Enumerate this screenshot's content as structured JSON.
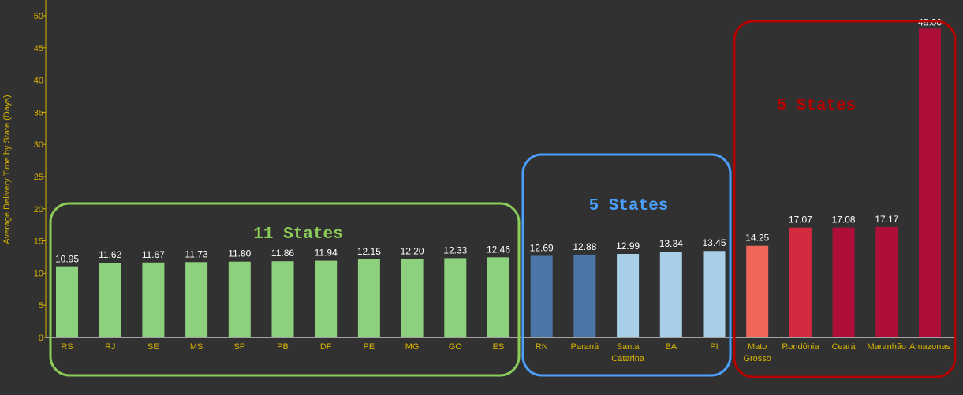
{
  "chart_data": {
    "type": "bar",
    "ylabel": "Average Delivery Time by State (Days)",
    "ylim": [
      0,
      50
    ],
    "yticks": [
      0,
      5,
      10,
      15,
      20,
      25,
      30,
      35,
      40,
      45,
      50
    ],
    "categories": [
      "RS",
      "RJ",
      "SE",
      "MS",
      "SP",
      "PB",
      "DF",
      "PE",
      "MG",
      "GO",
      "ES",
      "RN",
      "Paraná",
      "Santa Catarina",
      "BA",
      "PI",
      "Mato Grosso",
      "Rondônia",
      "Ceará",
      "Maranhão",
      "Amazonas"
    ],
    "values": [
      10.95,
      11.62,
      11.67,
      11.73,
      11.8,
      11.86,
      11.94,
      12.15,
      12.2,
      12.33,
      12.46,
      12.69,
      12.88,
      12.99,
      13.34,
      13.45,
      14.25,
      17.07,
      17.08,
      17.17,
      48.0
    ],
    "value_labels": [
      "10.95",
      "11.62",
      "11.67",
      "11.73",
      "11.80",
      "11.86",
      "11.94",
      "12.15",
      "12.20",
      "12.33",
      "12.46",
      "12.69",
      "12.88",
      "12.99",
      "13.34",
      "13.45",
      "14.25",
      "17.07",
      "17.08",
      "17.17",
      "48.00"
    ],
    "bar_colors": [
      "#8dd17e",
      "#8dd17e",
      "#8dd17e",
      "#8dd17e",
      "#8dd17e",
      "#8dd17e",
      "#8dd17e",
      "#8dd17e",
      "#8dd17e",
      "#8dd17e",
      "#8dd17e",
      "#4a76a8",
      "#4a76a8",
      "#a9cfe8",
      "#a9cfe8",
      "#a9cfe8",
      "#f0675a",
      "#d42a3f",
      "#ad0f38",
      "#ad0f38",
      "#ad0f38"
    ],
    "groups": [
      {
        "label": "11 States",
        "color": "#8ccc58",
        "from": 0,
        "to": 10
      },
      {
        "label": "5 States",
        "color": "#4a9fff",
        "from": 11,
        "to": 15
      },
      {
        "label": "5 States",
        "color": "#b40000",
        "from": 16,
        "to": 20
      }
    ],
    "axis_color": "#d8b400",
    "label_color": "#ffffff"
  }
}
